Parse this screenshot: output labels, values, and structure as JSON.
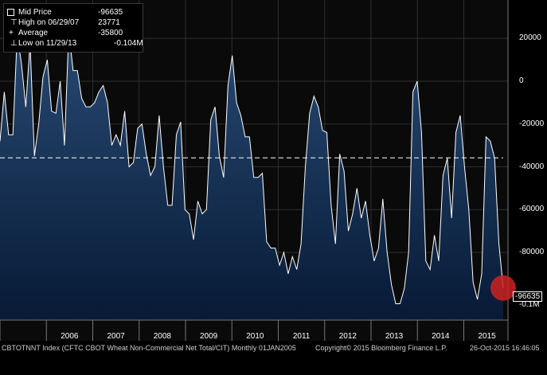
{
  "legend": {
    "rows": [
      {
        "label": "Mid Price",
        "value": "-96635"
      },
      {
        "label": "High on 06/29/07",
        "value": "23771"
      },
      {
        "label": "Average",
        "value": "-35800"
      },
      {
        "label": "Low on 11/29/13",
        "value": "-0.104M"
      }
    ]
  },
  "footer": {
    "left": "CBTOTNNT Index (CFTC CBOT Wheat Non-Commercial Net Total/CIT)  Monthly 01JAN2005",
    "center": "Copyright© 2015 Bloomberg Finance L.P.",
    "right": "26-Oct-2015 16:46:05"
  },
  "last_value_label": "-96635",
  "min_axis_label": "-0.1M",
  "colors": {
    "line": "#ffffff",
    "fill_top": "#284a73",
    "fill_bottom": "#071a36",
    "marker": "#cc2222",
    "average": "#ffffff"
  },
  "chart_data": {
    "type": "area",
    "title": "",
    "xlabel": "",
    "ylabel": "",
    "ylim": [
      -105000,
      25000
    ],
    "y_ticks": [
      20000,
      0,
      -20000,
      -40000,
      -60000,
      -80000
    ],
    "y_tick_labels": [
      "20000",
      "0",
      "-20000",
      "-40000",
      "-60000",
      "-80000"
    ],
    "x_tick_labels": [
      "2006",
      "2007",
      "2008",
      "2009",
      "2010",
      "2011",
      "2012",
      "2013",
      "2014",
      "2015"
    ],
    "x_start_year": 2005.0,
    "x_end_year": 2015.85,
    "average": -35800,
    "grid": true,
    "series": [
      {
        "values": [
          -28000,
          -5000,
          -25000,
          -25000,
          22000,
          8000,
          -12000,
          18000,
          -35000,
          -20000,
          2000,
          10000,
          -14000,
          -15000,
          0,
          -30000,
          23771,
          5000,
          5000,
          -8000,
          -12000,
          -12000,
          -10000,
          -5000,
          -2000,
          -10000,
          -30000,
          -25000,
          -30000,
          -14000,
          -40000,
          -38000,
          -22000,
          -20000,
          -34000,
          -44000,
          -40000,
          -16000,
          -40000,
          -58000,
          -58000,
          -25000,
          -19000,
          -60000,
          -62000,
          -74000,
          -56000,
          -62000,
          -60000,
          -18000,
          -12000,
          -35000,
          -45000,
          -2000,
          12000,
          -10000,
          -16000,
          -26000,
          -26000,
          -45000,
          -45000,
          -43000,
          -75000,
          -78000,
          -78000,
          -86000,
          -80000,
          -90000,
          -82000,
          -88000,
          -76000,
          -40000,
          -15000,
          -7000,
          -12000,
          -23000,
          -24000,
          -58000,
          -76000,
          -34000,
          -42000,
          -70000,
          -62000,
          -50000,
          -64000,
          -56000,
          -72000,
          -84000,
          -78000,
          -55000,
          -80000,
          -95000,
          -104000,
          -104000,
          -97000,
          -80000,
          -5000,
          0,
          -24000,
          -84000,
          -88000,
          -72000,
          -84000,
          -44000,
          -36000,
          -64000,
          -24000,
          -16000,
          -40000,
          -60000,
          -94000,
          -102000,
          -90000,
          -26000,
          -28000,
          -36000,
          -76000,
          -96635
        ]
      }
    ]
  }
}
